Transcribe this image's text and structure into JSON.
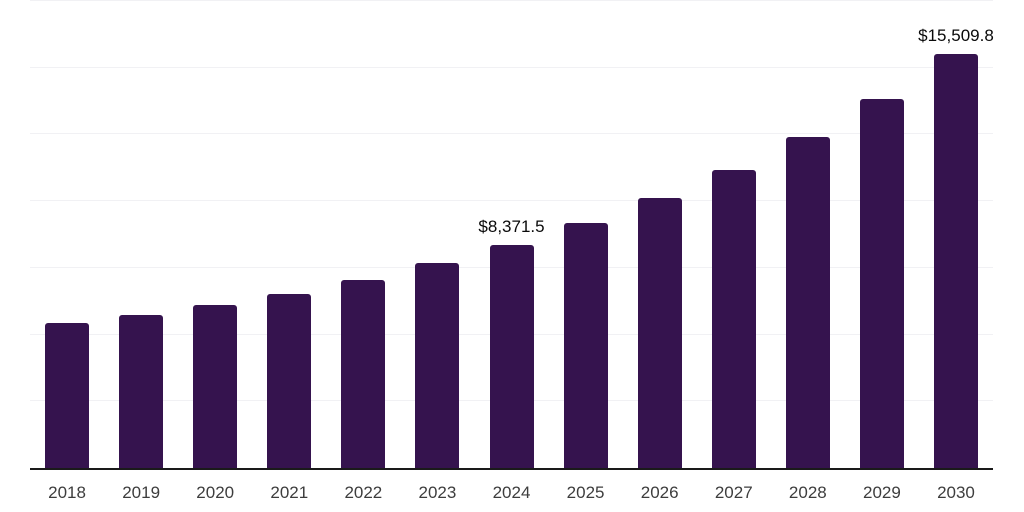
{
  "chart": {
    "background": "#FFFFFF",
    "bar_color": "#35134E",
    "gridline_color": "#F1F1F4",
    "axis_color": "#1A1A1A",
    "year_label_color": "#3D3D3D",
    "value_label_color": "#0A0A0A"
  },
  "chart_data": {
    "type": "bar",
    "categories": [
      "2018",
      "2019",
      "2020",
      "2021",
      "2022",
      "2023",
      "2024",
      "2025",
      "2026",
      "2027",
      "2028",
      "2029",
      "2030"
    ],
    "values": [
      5440,
      5740,
      6110,
      6520,
      7040,
      7680,
      8371.5,
      9170,
      10100,
      11180,
      12410,
      13830,
      15509.8
    ],
    "value_labels": [
      "",
      "",
      "",
      "",
      "",
      "",
      "$8,371.5",
      "",
      "",
      "",
      "",
      "",
      "$15,509.8"
    ],
    "title": "",
    "xlabel": "",
    "ylabel": "",
    "ylim": [
      0,
      17500
    ],
    "gridline_interval": 2500,
    "grid": "horizontal",
    "legend_position": "none"
  }
}
